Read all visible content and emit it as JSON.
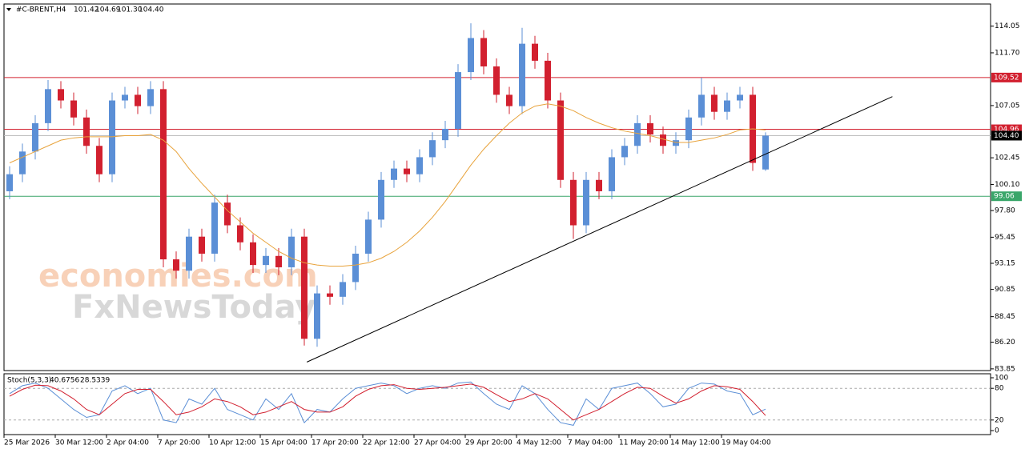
{
  "chart_data": {
    "type": "candlestick",
    "title": "#C-BRENT,H4",
    "header_ohlc": [
      101.42,
      104.69,
      {
        "value": 101.3,
        "label": "101.30"
      },
      {
        "value": 104.4,
        "label": "104.40"
      }
    ],
    "watermark": [
      "economies.com",
      "FxNewsToday"
    ],
    "categories": [
      "25 Mar 2026",
      null,
      null,
      null,
      "30 Mar 12:00",
      null,
      null,
      null,
      "2 Apr 04:00",
      null,
      null,
      null,
      "7 Apr 20:00",
      null,
      null,
      null,
      "10 Apr 12:00",
      null,
      null,
      null,
      "15 Apr 04:00",
      null,
      null,
      null,
      "17 Apr 20:00",
      null,
      null,
      null,
      "22 Apr 12:00",
      null,
      null,
      null,
      "27 Apr 04:00",
      null,
      null,
      null,
      "29 Apr 20:00",
      null,
      null,
      null,
      "4 May 12:00",
      null,
      null,
      null,
      "7 May 04:00",
      null,
      null,
      null,
      "11 May 20:00",
      null,
      null,
      null,
      "14 May 12:00",
      null,
      null,
      null,
      "19 May 04:00",
      null,
      null,
      null
    ],
    "open": [
      99.5,
      101.0,
      103.0,
      105.5,
      108.5,
      107.5,
      106.0,
      103.5,
      101.0,
      107.5,
      108.0,
      107.0,
      108.5,
      93.5,
      92.5,
      95.5,
      94.0,
      98.5,
      96.5,
      95.0,
      93.0,
      93.8,
      92.8,
      95.5,
      86.5,
      90.5,
      90.2,
      91.5,
      94.0,
      97.0,
      100.5,
      101.5,
      101.0,
      102.5,
      104.0,
      105.0,
      110.0,
      113.0,
      110.5,
      108.0,
      107.0,
      112.5,
      111.0,
      107.5,
      100.5,
      96.5,
      100.5,
      99.5,
      102.5,
      103.5,
      105.5,
      104.5,
      103.5,
      104.0,
      106.0,
      108.0,
      106.5,
      107.5,
      108.0,
      101.42
    ],
    "high": [
      101.7,
      103.7,
      106.2,
      109.3,
      109.2,
      108.2,
      106.7,
      104.2,
      108.2,
      108.7,
      108.7,
      109.2,
      109.2,
      94.2,
      96.2,
      96.2,
      99.2,
      99.2,
      97.2,
      95.7,
      94.5,
      94.5,
      96.2,
      96.2,
      91.2,
      91.2,
      92.2,
      94.7,
      97.7,
      101.2,
      102.2,
      102.2,
      103.2,
      104.7,
      105.7,
      110.7,
      114.3,
      113.7,
      111.2,
      108.7,
      113.9,
      113.2,
      111.7,
      108.2,
      101.2,
      101.2,
      101.2,
      103.2,
      104.2,
      106.2,
      106.2,
      105.2,
      104.7,
      106.7,
      109.5,
      108.7,
      108.2,
      108.7,
      108.7,
      104.69
    ],
    "low": [
      98.8,
      100.3,
      102.3,
      104.8,
      106.8,
      105.3,
      102.8,
      100.3,
      100.3,
      106.8,
      106.3,
      106.3,
      92.8,
      91.8,
      91.8,
      93.3,
      93.3,
      95.8,
      94.3,
      92.3,
      92.3,
      92.1,
      92.1,
      85.9,
      85.8,
      89.5,
      89.5,
      90.8,
      93.3,
      96.3,
      99.8,
      100.3,
      100.3,
      101.8,
      103.3,
      104.3,
      109.3,
      109.8,
      107.3,
      106.3,
      106.3,
      110.3,
      106.8,
      99.8,
      95.3,
      95.8,
      98.8,
      98.8,
      101.8,
      102.8,
      103.8,
      102.8,
      102.8,
      103.3,
      105.3,
      105.8,
      105.8,
      106.8,
      101.3,
      101.3
    ],
    "close": [
      101.0,
      103.0,
      105.5,
      108.5,
      107.5,
      106.0,
      103.5,
      101.0,
      107.5,
      108.0,
      107.0,
      108.5,
      93.5,
      92.5,
      95.5,
      94.0,
      98.5,
      96.5,
      95.0,
      93.0,
      93.8,
      92.8,
      95.5,
      86.5,
      90.5,
      90.2,
      91.5,
      94.0,
      97.0,
      100.5,
      101.5,
      101.0,
      102.5,
      104.0,
      105.0,
      110.0,
      113.0,
      110.5,
      108.0,
      107.0,
      112.5,
      111.0,
      107.5,
      100.5,
      96.5,
      100.5,
      99.5,
      102.5,
      103.5,
      105.5,
      104.5,
      103.5,
      104.0,
      106.0,
      108.0,
      106.5,
      107.5,
      108.0,
      102.0,
      104.4
    ],
    "up_color": "#5b8fd6",
    "down_color": "#d2202f",
    "moving_average": {
      "color": "#e8a33c",
      "values": [
        102.0,
        102.5,
        103.0,
        103.5,
        104.0,
        104.2,
        104.3,
        104.3,
        104.3,
        104.4,
        104.4,
        104.5,
        104.0,
        103.0,
        101.5,
        100.2,
        99.0,
        97.8,
        96.8,
        95.8,
        95.0,
        94.2,
        93.6,
        93.2,
        93.0,
        92.9,
        92.9,
        93.0,
        93.2,
        93.6,
        94.2,
        95.0,
        96.0,
        97.2,
        98.6,
        100.2,
        101.8,
        103.2,
        104.4,
        105.5,
        106.4,
        107.0,
        107.2,
        107.0,
        106.6,
        106.0,
        105.5,
        105.1,
        104.8,
        104.6,
        104.4,
        104.1,
        103.8,
        103.8,
        104.0,
        104.2,
        104.5,
        104.9,
        105.0,
        104.9
      ]
    },
    "trendline": {
      "color": "#000000",
      "x": [
        23.2,
        68.9
      ],
      "y": [
        84.45,
        107.84
      ]
    },
    "levels": [
      {
        "value": 109.52,
        "color": "#d2202f"
      },
      {
        "value": 104.96,
        "color": "#d2202f"
      },
      {
        "value": {
          "value": 104.4,
          "label": "104.40"
        },
        "color": "#000000"
      },
      {
        "value": 99.06,
        "color": "#3aa66a"
      }
    ],
    "ylim": [
      83.7,
      116.0
    ],
    "yticks": [
      83.85,
      {
        "value": 86.2,
        "label": "86.20"
      },
      88.45,
      90.85,
      93.15,
      95.45,
      {
        "value": 97.8,
        "label": "97.80"
      },
      {
        "value": 100.1,
        "label": "100.10"
      },
      102.45,
      107.05,
      {
        "value": 111.7,
        "label": "111.70"
      },
      114.05
    ],
    "oscillator": {
      "title": "Stoch(5,3,3)",
      "readings": [
        40.6756,
        28.5339
      ],
      "ylim": [
        0,
        100
      ],
      "yticks": [
        0,
        20,
        80,
        100
      ],
      "levels": [
        20,
        80
      ],
      "series": [
        {
          "color": "#5b8fd6",
          "values": [
            70,
            85,
            90,
            80,
            60,
            40,
            25,
            30,
            75,
            85,
            70,
            80,
            20,
            15,
            60,
            50,
            80,
            40,
            30,
            20,
            60,
            40,
            70,
            15,
            40,
            35,
            60,
            80,
            85,
            90,
            85,
            70,
            80,
            85,
            80,
            90,
            92,
            70,
            50,
            40,
            85,
            70,
            40,
            15,
            10,
            60,
            40,
            80,
            85,
            90,
            70,
            45,
            50,
            80,
            90,
            88,
            75,
            70,
            30,
            40.6756
          ]
        },
        {
          "color": "#d2202f",
          "values": [
            65,
            78,
            86,
            85,
            75,
            60,
            40,
            30,
            50,
            70,
            78,
            78,
            55,
            30,
            35,
            45,
            60,
            55,
            45,
            30,
            35,
            45,
            55,
            40,
            35,
            35,
            45,
            65,
            78,
            85,
            87,
            80,
            78,
            80,
            82,
            85,
            88,
            82,
            68,
            55,
            60,
            70,
            60,
            40,
            20,
            30,
            40,
            55,
            70,
            82,
            80,
            65,
            52,
            60,
            75,
            85,
            83,
            78,
            55,
            28.5339
          ]
        }
      ]
    }
  }
}
